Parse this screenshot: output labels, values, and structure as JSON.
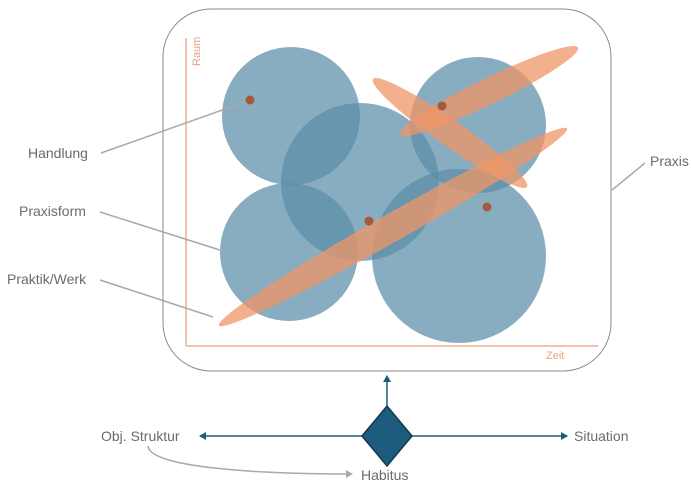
{
  "labels": {
    "handlung": "Handlung",
    "praxisform": "Praxisform",
    "praktik_werk": "Praktik/Werk",
    "praxis": "Praxis",
    "obj_struktur": "Obj. Struktur",
    "situation": "Situation",
    "habitus": "Habitus"
  },
  "axes": {
    "y_label": "Raum",
    "x_label": "Zeit"
  },
  "colors": {
    "circle_fill": "#5b8da8",
    "ellipse_fill": "#ef9565",
    "dot": "#a35a3c",
    "frame_stroke": "#8a8a8a",
    "axis": "#f2c3a8",
    "leader_line": "#a9a9a9",
    "diamond_fill": "#1d5b7d",
    "diamond_stroke": "#0f3a52",
    "arrow": "#1d5b7d",
    "label_text": "#6b6b6b"
  }
}
